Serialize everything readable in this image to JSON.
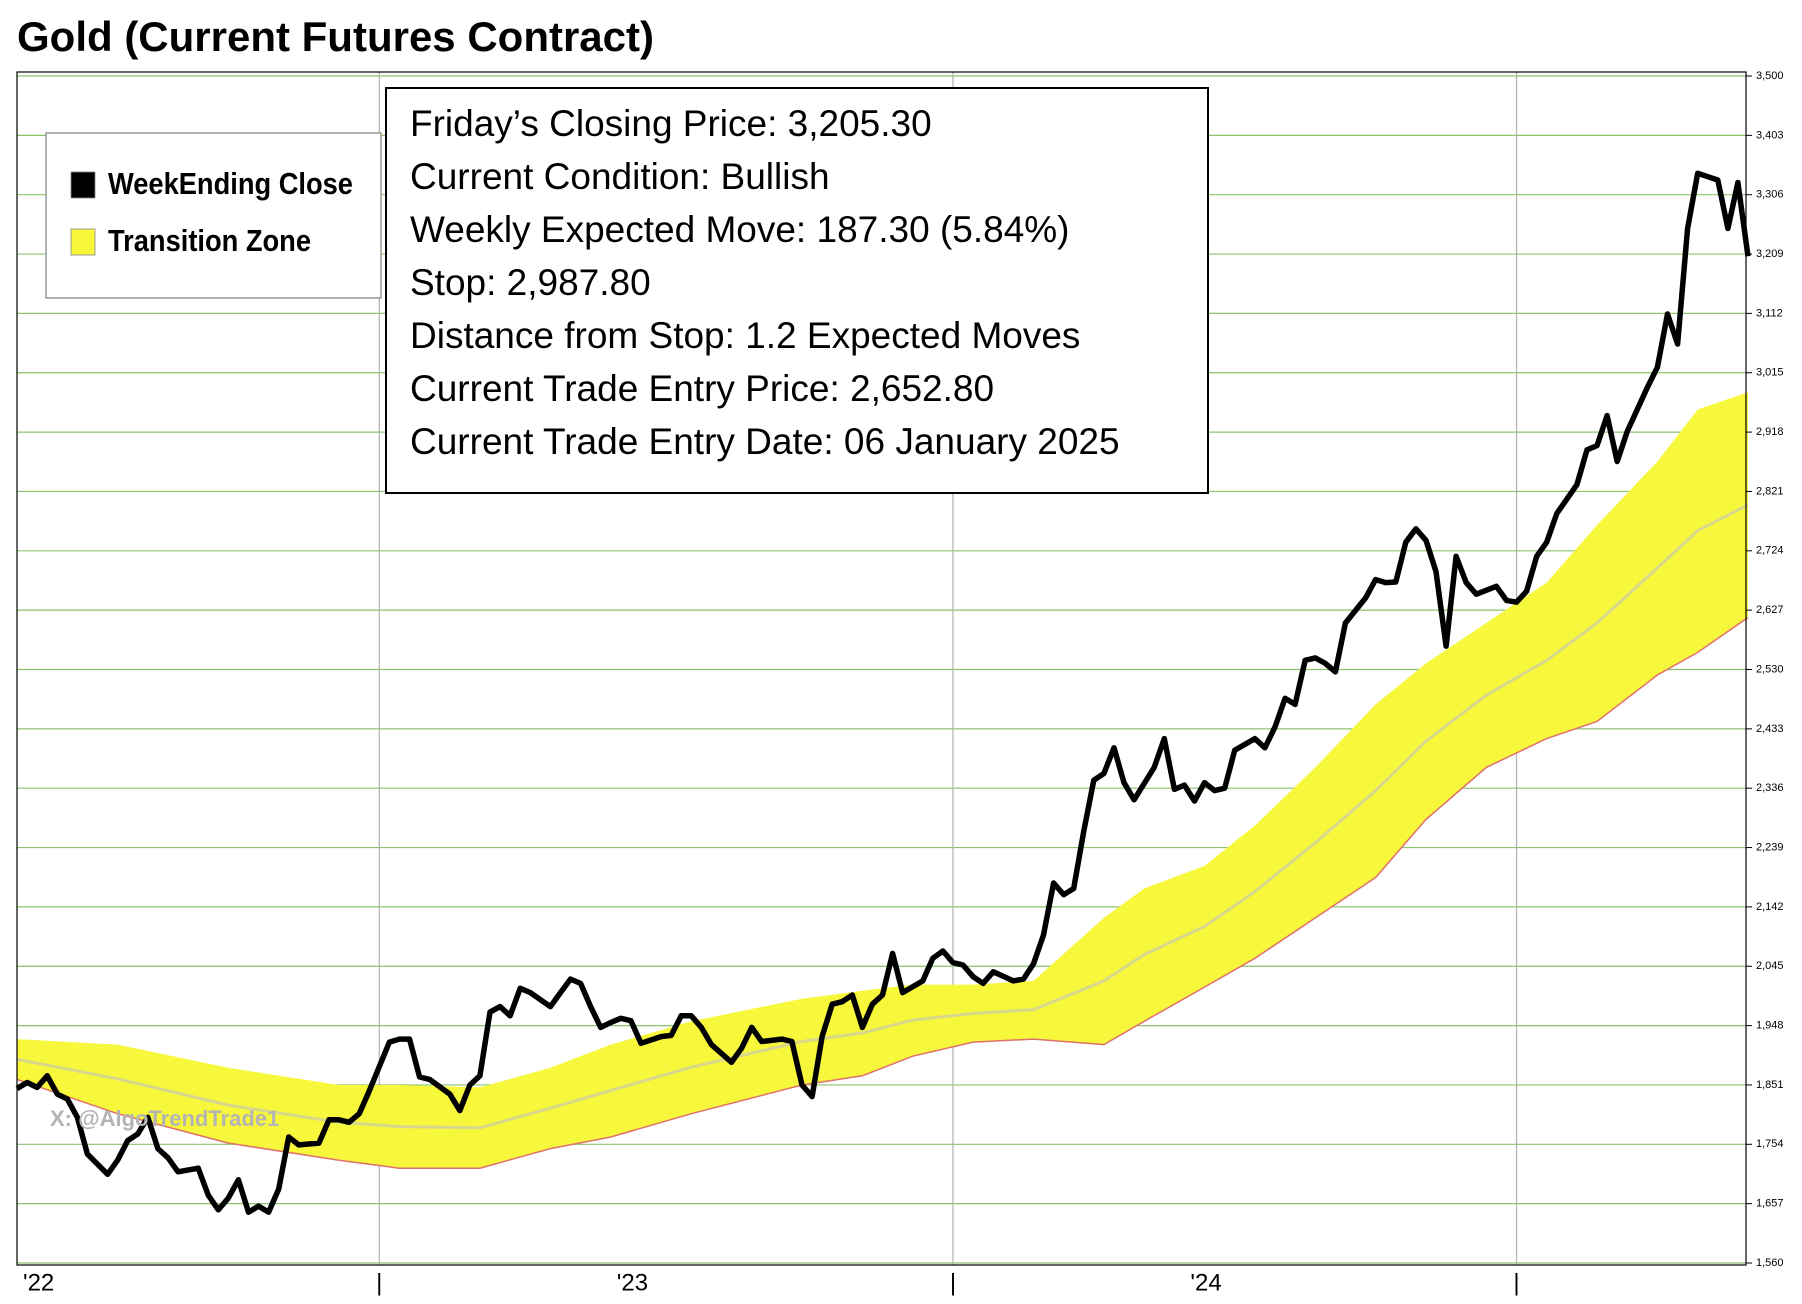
{
  "chart_data": {
    "type": "line",
    "title": "Gold (Current Futures Contract)",
    "annotations": [
      "Friday’s Closing Price: 3,205.30",
      "Current Condition: Bullish",
      "Weekly Expected Move: 187.30 (5.84%)",
      "Stop: 2,987.80",
      "Distance from Stop: 1.2 Expected Moves",
      "Current Trade Entry Price: 2,652.80",
      "Current Trade Entry Date: 06 January 2025"
    ],
    "watermark": "X: @AlgoTrendTrade1",
    "xlim": [
      0,
      172
    ],
    "xticks": [
      {
        "value": 0,
        "label": "'22"
      },
      {
        "value": 36,
        "label": "|"
      },
      {
        "value": 59,
        "label": "'23"
      },
      {
        "value": 93,
        "label": "|"
      },
      {
        "value": 116,
        "label": "'24"
      },
      {
        "value": 149,
        "label": "|"
      }
    ],
    "ylim": [
      1560,
      3500
    ],
    "yticks": [
      {
        "value": 1560,
        "label": "1,560"
      },
      {
        "value": 1657,
        "label": "1,657"
      },
      {
        "value": 1754,
        "label": "1,754"
      },
      {
        "value": 1851,
        "label": "1,851"
      },
      {
        "value": 1948,
        "label": "1,948"
      },
      {
        "value": 2045,
        "label": "2,045"
      },
      {
        "value": 2142,
        "label": "2,142"
      },
      {
        "value": 2239,
        "label": "2,239"
      },
      {
        "value": 2336,
        "label": "2,336"
      },
      {
        "value": 2433,
        "label": "2,433"
      },
      {
        "value": 2530,
        "label": "2,530"
      },
      {
        "value": 2627,
        "label": "2,627"
      },
      {
        "value": 2724,
        "label": "2,724"
      },
      {
        "value": 2821,
        "label": "2,821"
      },
      {
        "value": 2918,
        "label": "2,918"
      },
      {
        "value": 3015,
        "label": "3,015"
      },
      {
        "value": 3112,
        "label": "3,112"
      },
      {
        "value": 3209,
        "label": "3,209"
      },
      {
        "value": 3306,
        "label": "3,306"
      },
      {
        "value": 3403,
        "label": "3,403"
      },
      {
        "value": 3500,
        "label": "3,500"
      }
    ],
    "grid": true,
    "grid_color": "#8cc46e",
    "vgrid_color": "#b0b0b0",
    "legend": "upper left",
    "series": [
      {
        "name": "WeekEnding Close",
        "color": "#000000",
        "x": [
          0,
          1,
          2,
          3,
          4,
          5,
          6,
          7,
          9,
          10,
          11,
          12,
          13,
          14,
          15,
          16,
          18,
          19,
          20,
          21,
          22,
          23,
          24,
          25,
          26,
          27,
          28,
          30,
          31,
          32,
          33,
          34,
          35,
          37,
          38,
          39,
          40,
          41,
          43,
          44,
          45,
          46,
          47,
          48,
          49,
          50,
          51,
          53,
          54,
          55,
          56,
          57,
          58,
          59,
          60,
          61,
          62,
          64,
          65,
          66,
          67,
          68,
          69,
          71,
          72,
          73,
          74,
          76,
          77,
          78,
          79,
          80,
          81,
          82,
          83,
          84,
          85,
          86,
          87,
          88,
          90,
          91,
          92,
          93,
          94,
          95,
          96,
          97,
          99,
          100,
          101,
          102,
          103,
          104,
          105,
          106,
          107,
          108,
          109,
          110,
          111,
          113,
          114,
          115,
          116,
          117,
          118,
          119,
          120,
          121,
          123,
          124,
          125,
          126,
          127,
          128,
          129,
          130,
          131,
          132,
          134,
          135,
          136,
          137,
          138,
          139,
          140,
          141,
          142,
          143,
          144,
          145,
          147,
          148,
          149,
          150,
          151,
          152,
          153,
          155,
          156,
          157,
          158,
          159,
          160,
          162,
          163,
          164,
          165,
          166,
          167,
          169,
          170,
          171,
          172
        ],
        "values": [
          1845,
          1855,
          1847,
          1866,
          1836,
          1828,
          1798,
          1738,
          1705,
          1728,
          1760,
          1771,
          1798,
          1747,
          1732,
          1709,
          1715,
          1671,
          1647,
          1666,
          1696,
          1643,
          1653,
          1643,
          1681,
          1766,
          1753,
          1756,
          1794,
          1794,
          1790,
          1804,
          1841,
          1921,
          1926,
          1926,
          1864,
          1860,
          1836,
          1809,
          1851,
          1866,
          1970,
          1979,
          1964,
          2009,
          2002,
          1979,
          2002,
          2024,
          2017,
          1979,
          1945,
          1953,
          1960,
          1956,
          1919,
          1930,
          1932,
          1964,
          1964,
          1945,
          1917,
          1888,
          1911,
          1945,
          1922,
          1926,
          1922,
          1851,
          1832,
          1930,
          1983,
          1987,
          1998,
          1945,
          1983,
          1998,
          2066,
          2002,
          2021,
          2058,
          2070,
          2051,
          2047,
          2028,
          2017,
          2036,
          2021,
          2024,
          2049,
          2096,
          2181,
          2162,
          2172,
          2266,
          2349,
          2360,
          2402,
          2345,
          2317,
          2370,
          2417,
          2334,
          2341,
          2315,
          2345,
          2332,
          2336,
          2398,
          2417,
          2402,
          2436,
          2483,
          2473,
          2545,
          2549,
          2540,
          2526,
          2606,
          2647,
          2677,
          2672,
          2673,
          2738,
          2760,
          2741,
          2690,
          2568,
          2715,
          2672,
          2653,
          2666,
          2643,
          2640,
          2658,
          2715,
          2738,
          2785,
          2832,
          2889,
          2896,
          2945,
          2870,
          2919,
          2991,
          3024,
          3111,
          3062,
          3251,
          3341,
          3330,
          3251,
          3326,
          3205.3
        ]
      },
      {
        "name": "Transition Zone",
        "color": "#f7f73c",
        "edge_color": "#e0706a",
        "mid_color": "#d8d88c",
        "x": [
          0,
          10,
          21,
          32,
          38,
          46,
          53,
          59,
          67,
          78,
          84,
          89,
          95,
          101,
          108,
          112,
          118,
          123,
          129,
          135,
          140,
          146,
          152,
          157,
          163,
          167,
          172
        ],
        "upper": [
          1926,
          1917,
          1879,
          1851,
          1851,
          1847,
          1879,
          1917,
          1955,
          1992,
          2005,
          2015,
          2015,
          2021,
          2124,
          2172,
          2209,
          2275,
          2370,
          2473,
          2540,
          2606,
          2672,
          2766,
          2870,
          2955,
          2983
        ],
        "mid": [
          1893,
          1861,
          1818,
          1790,
          1783,
          1781,
          1813,
          1842,
          1880,
          1922,
          1936,
          1957,
          1968,
          1974,
          2021,
          2064,
          2110,
          2167,
          2247,
          2332,
          2413,
          2488,
          2545,
          2606,
          2696,
          2757,
          2799
        ],
        "lower": [
          1860,
          1804,
          1756,
          1728,
          1715,
          1715,
          1747,
          1766,
          1804,
          1851,
          1866,
          1898,
          1921,
          1926,
          1917,
          1955,
          2011,
          2058,
          2124,
          2190,
          2285,
          2370,
          2417,
          2445,
          2521,
          2558,
          2615
        ]
      }
    ]
  }
}
